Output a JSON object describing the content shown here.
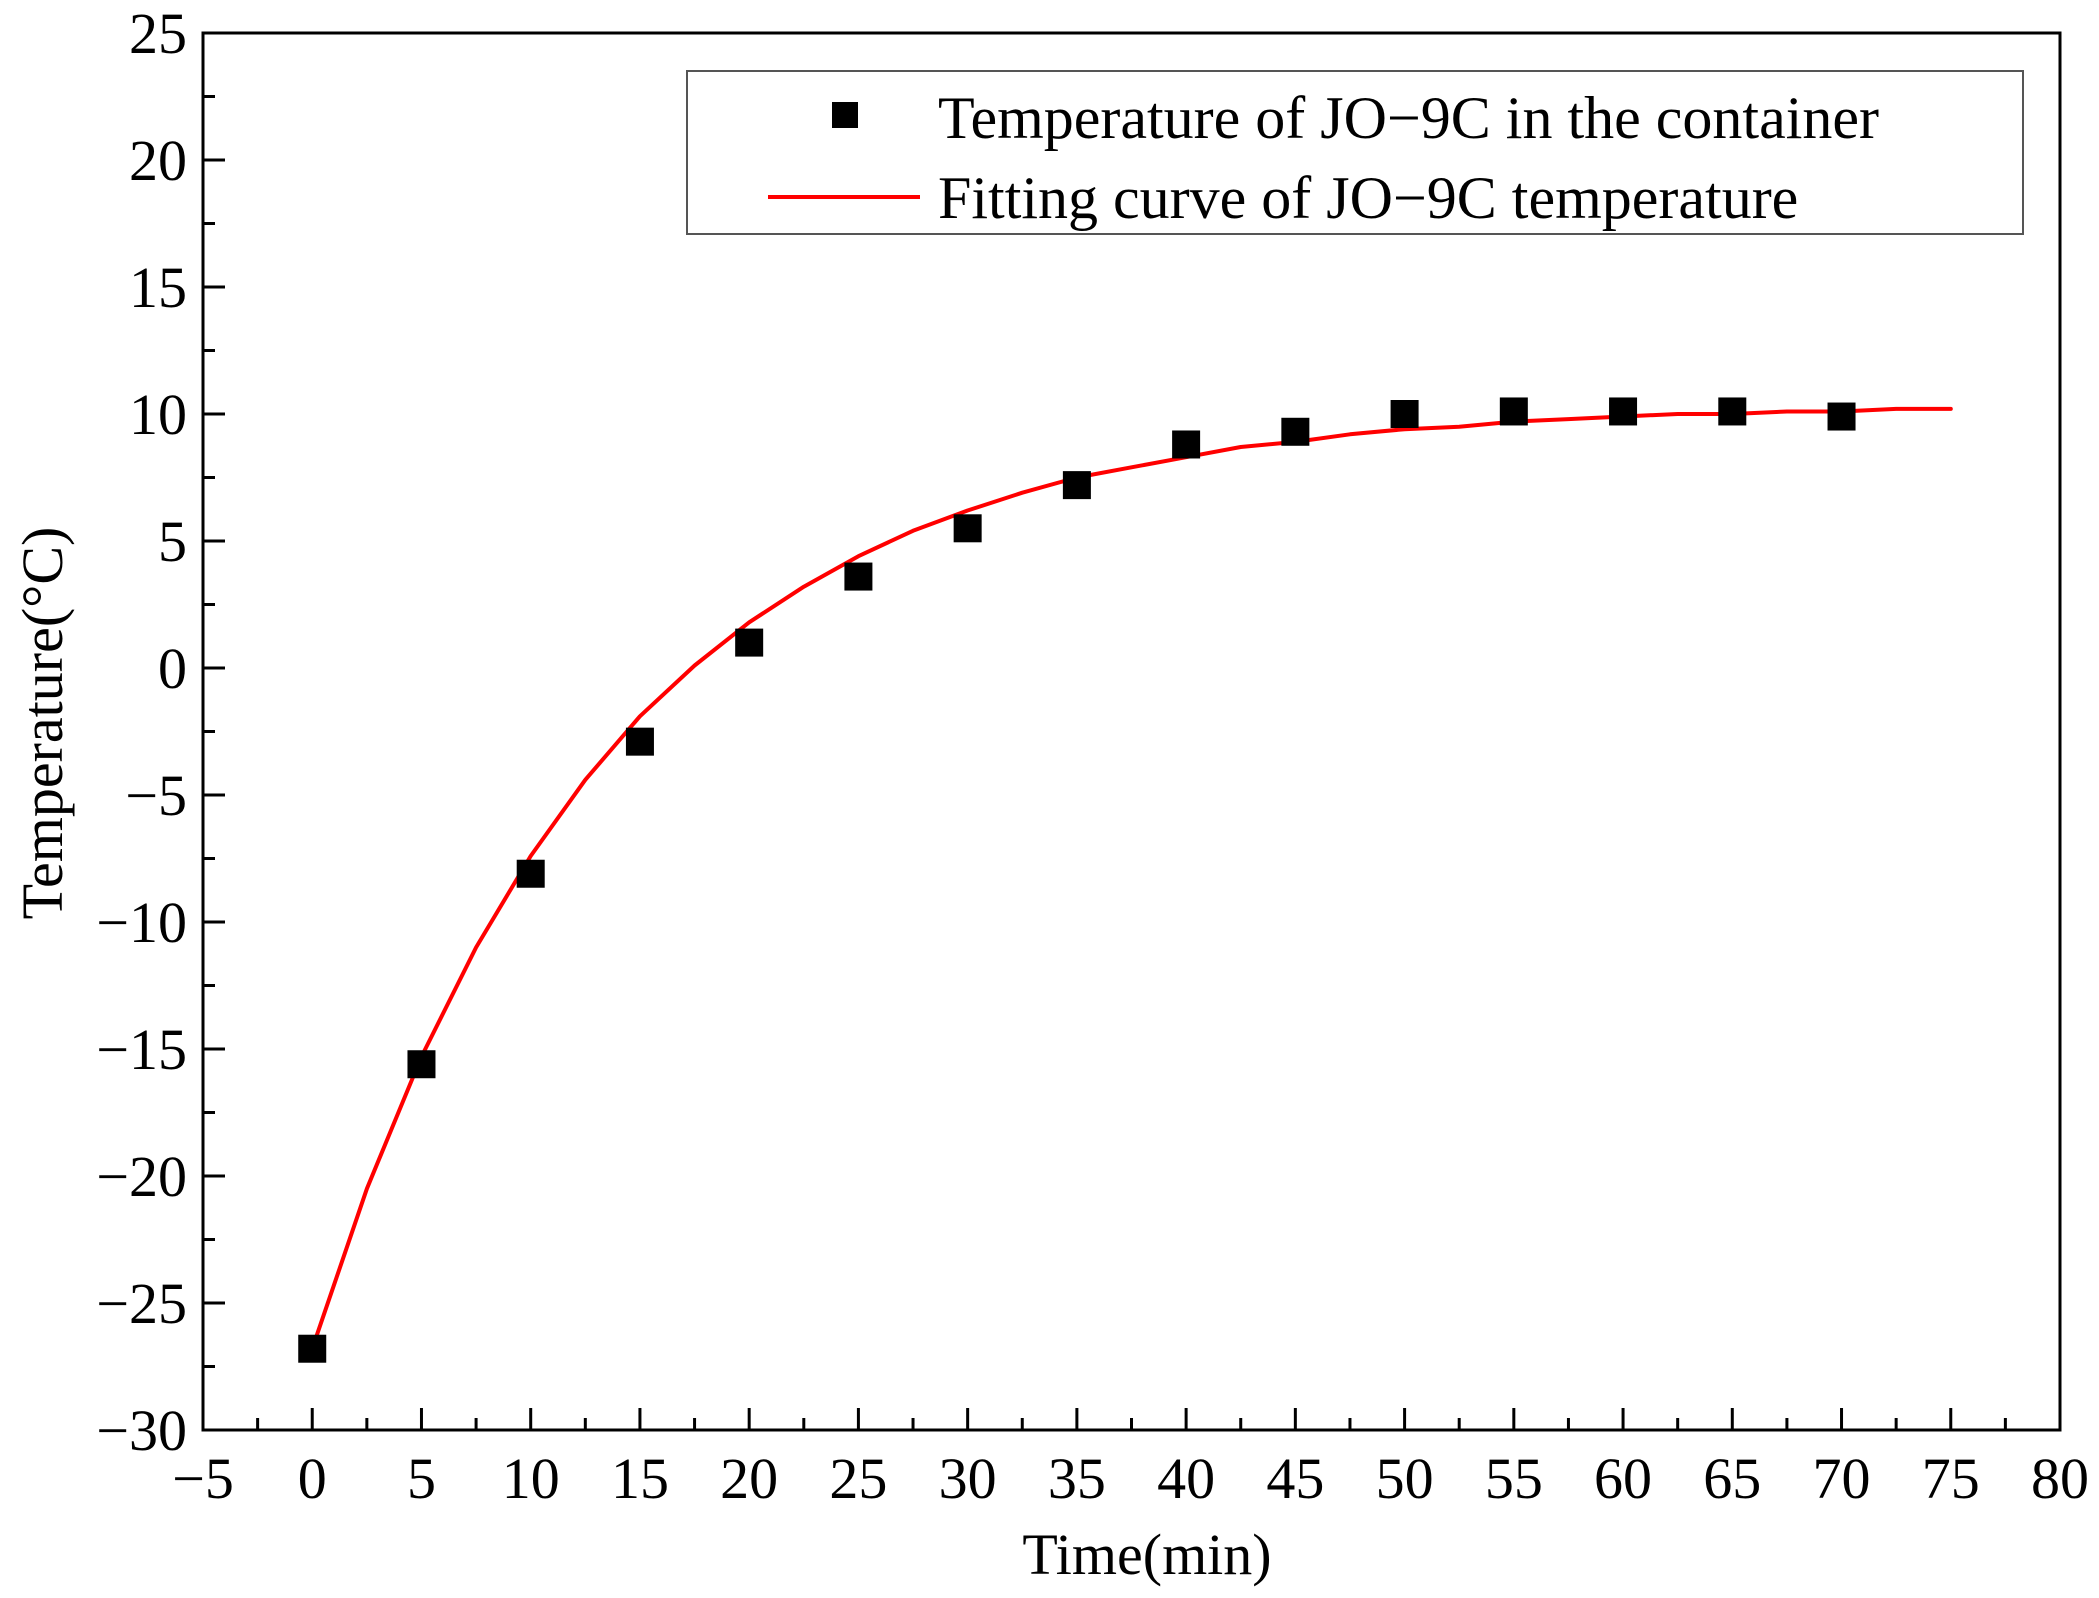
{
  "chart_data": {
    "type": "scatter",
    "title": "",
    "xlabel": "Time(min)",
    "ylabel": "Temperature(°C)",
    "xlim": [
      -5,
      80
    ],
    "ylim": [
      -30,
      25
    ],
    "xticks": [
      -5,
      0,
      5,
      10,
      15,
      20,
      25,
      30,
      35,
      40,
      45,
      50,
      55,
      60,
      65,
      70,
      75,
      80
    ],
    "xtick_labels": [
      "−5",
      "0",
      "5",
      "10",
      "15",
      "20",
      "25",
      "30",
      "35",
      "40",
      "45",
      "50",
      "55",
      "60",
      "65",
      "70",
      "75",
      "80"
    ],
    "yticks": [
      25,
      20,
      15,
      10,
      5,
      0,
      -5,
      -10,
      -15,
      -20,
      -25,
      -30
    ],
    "ytick_labels": [
      "25",
      "20",
      "15",
      "10",
      "5",
      "0",
      "−5",
      "−10",
      "−15",
      "−20",
      "−25",
      "−30"
    ],
    "grid": false,
    "legend_position": "top-right",
    "series": [
      {
        "name": "Temperature of JO−9C in the container",
        "kind": "scatter",
        "marker": "square",
        "color": "#000000",
        "x": [
          0,
          5,
          10,
          15,
          20,
          25,
          30,
          35,
          40,
          45,
          50,
          55,
          60,
          65,
          70
        ],
        "y": [
          -26.8,
          -15.6,
          -8.1,
          -2.9,
          1.0,
          3.6,
          5.5,
          7.2,
          8.8,
          9.3,
          10.0,
          10.1,
          10.1,
          10.1,
          9.9
        ]
      },
      {
        "name": "Fitting curve of JO−9C temperature",
        "kind": "line",
        "color": "#ff0000",
        "x": [
          0,
          2.5,
          5,
          7.5,
          10,
          12.5,
          15,
          17.5,
          20,
          22.5,
          25,
          27.5,
          30,
          32.5,
          35,
          37.5,
          40,
          42.5,
          45,
          47.5,
          50,
          52.5,
          55,
          57.5,
          60,
          62.5,
          65,
          67.5,
          70,
          72.5,
          75
        ],
        "y": [
          -26.8,
          -20.5,
          -15.3,
          -11.0,
          -7.4,
          -4.4,
          -1.9,
          0.1,
          1.8,
          3.2,
          4.4,
          5.4,
          6.2,
          6.9,
          7.5,
          7.9,
          8.3,
          8.7,
          8.9,
          9.2,
          9.4,
          9.5,
          9.7,
          9.8,
          9.9,
          10.0,
          10.0,
          10.1,
          10.1,
          10.2,
          10.2
        ]
      }
    ]
  }
}
